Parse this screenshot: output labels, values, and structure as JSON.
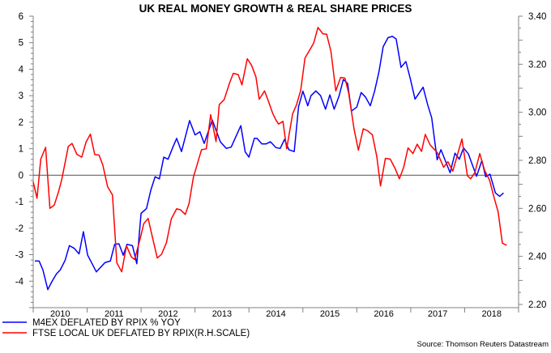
{
  "chart_data": {
    "type": "line",
    "title": "UK REAL MONEY GROWTH & REAL SHARE PRICES",
    "source": "Source: Thomson Reuters Datastream",
    "x_tick_labels": [
      "2010",
      "2011",
      "2012",
      "2013",
      "2014",
      "2015",
      "2016",
      "2017",
      "2018"
    ],
    "xlim": [
      2010,
      2019
    ],
    "y_left": {
      "ylim": [
        -5,
        6
      ],
      "tick_labels": [
        "6",
        "5",
        "4",
        "3",
        "2",
        "1",
        "0",
        "-1",
        "-2",
        "-3",
        "-4"
      ],
      "ticks": [
        6,
        5,
        4,
        3,
        2,
        1,
        0,
        -1,
        -2,
        -3,
        -4
      ]
    },
    "y_right": {
      "ylim": [
        2.2,
        3.4
      ],
      "tick_labels": [
        "3.40",
        "3.20",
        "3.00",
        "2.80",
        "2.60",
        "2.40",
        "2.20"
      ],
      "ticks": [
        3.4,
        3.2,
        3.0,
        2.8,
        2.6,
        2.4,
        2.2
      ]
    },
    "reference_line": 0,
    "grid": false,
    "legend_placement": "bottom-left",
    "series": [
      {
        "name": "M4EX DEFLATED BY RPIX % YOY",
        "axis": "left",
        "color": "#0000ff",
        "points": [
          [
            2010.03,
            -3.24
          ],
          [
            2010.11,
            -3.24
          ],
          [
            2010.18,
            -3.58
          ],
          [
            2010.27,
            -4.32
          ],
          [
            2010.34,
            -4.04
          ],
          [
            2010.43,
            -3.73
          ],
          [
            2010.5,
            -3.58
          ],
          [
            2010.59,
            -3.22
          ],
          [
            2010.67,
            -2.66
          ],
          [
            2010.76,
            -2.76
          ],
          [
            2010.85,
            -2.97
          ],
          [
            2010.93,
            -2.13
          ],
          [
            2011.01,
            -3.02
          ],
          [
            2011.17,
            -3.65
          ],
          [
            2011.33,
            -3.3
          ],
          [
            2011.43,
            -3.24
          ],
          [
            2011.51,
            -2.61
          ],
          [
            2011.59,
            -2.59
          ],
          [
            2011.67,
            -3.02
          ],
          [
            2011.74,
            -2.61
          ],
          [
            2011.84,
            -2.66
          ],
          [
            2011.92,
            -3.34
          ],
          [
            2012.0,
            -1.44
          ],
          [
            2012.1,
            -1.26
          ],
          [
            2012.18,
            -0.57
          ],
          [
            2012.26,
            -0.06
          ],
          [
            2012.34,
            -0.14
          ],
          [
            2012.42,
            0.68
          ],
          [
            2012.5,
            0.6
          ],
          [
            2012.59,
            1.06
          ],
          [
            2012.66,
            1.39
          ],
          [
            2012.75,
            0.89
          ],
          [
            2012.9,
            2.06
          ],
          [
            2013.0,
            1.52
          ],
          [
            2013.09,
            1.64
          ],
          [
            2013.17,
            1.2
          ],
          [
            2013.32,
            2.08
          ],
          [
            2013.47,
            1.26
          ],
          [
            2013.58,
            1.01
          ],
          [
            2013.67,
            1.06
          ],
          [
            2013.85,
            1.87
          ],
          [
            2013.93,
            0.88
          ],
          [
            2014.0,
            0.68
          ],
          [
            2014.1,
            1.39
          ],
          [
            2014.15,
            1.39
          ],
          [
            2014.24,
            1.18
          ],
          [
            2014.32,
            1.18
          ],
          [
            2014.4,
            1.26
          ],
          [
            2014.5,
            1.04
          ],
          [
            2014.58,
            1.01
          ],
          [
            2014.66,
            1.35
          ],
          [
            2014.74,
            0.96
          ],
          [
            2014.84,
            0.89
          ],
          [
            2014.92,
            2.59
          ],
          [
            2015.0,
            3.17
          ],
          [
            2015.09,
            2.62
          ],
          [
            2015.15,
            3.0
          ],
          [
            2015.24,
            3.18
          ],
          [
            2015.33,
            3.0
          ],
          [
            2015.42,
            2.49
          ],
          [
            2015.5,
            3.03
          ],
          [
            2015.58,
            2.49
          ],
          [
            2015.67,
            2.98
          ],
          [
            2015.75,
            3.61
          ],
          [
            2015.83,
            3.46
          ],
          [
            2015.9,
            2.42
          ],
          [
            2016.0,
            2.57
          ],
          [
            2016.08,
            3.12
          ],
          [
            2016.16,
            2.95
          ],
          [
            2016.25,
            2.62
          ],
          [
            2016.33,
            3.17
          ],
          [
            2016.41,
            3.89
          ],
          [
            2016.49,
            4.85
          ],
          [
            2016.58,
            5.19
          ],
          [
            2016.66,
            5.24
          ],
          [
            2016.73,
            5.14
          ],
          [
            2016.82,
            4.07
          ],
          [
            2016.91,
            4.29
          ],
          [
            2016.99,
            3.66
          ],
          [
            2017.08,
            2.87
          ],
          [
            2017.23,
            3.32
          ],
          [
            2017.31,
            2.69
          ],
          [
            2017.39,
            2.16
          ],
          [
            2017.49,
            0.58
          ],
          [
            2017.56,
            0.96
          ],
          [
            2017.73,
            0.09
          ],
          [
            2017.82,
            0.83
          ],
          [
            2017.9,
            0.6
          ],
          [
            2017.98,
            1.03
          ],
          [
            2018.07,
            0.8
          ],
          [
            2018.22,
            -0.04
          ],
          [
            2018.32,
            0.55
          ],
          [
            2018.39,
            -0.06
          ],
          [
            2018.47,
            0.04
          ],
          [
            2018.57,
            -0.67
          ],
          [
            2018.65,
            -0.8
          ],
          [
            2018.72,
            -0.67
          ]
        ]
      },
      {
        "name": "FTSE LOCAL UK DEFLATED BY RPIX(R.H.SCALE)",
        "axis": "right",
        "color": "#ff0000",
        "points": [
          [
            2010.0,
            2.71
          ],
          [
            2010.07,
            2.642
          ],
          [
            2010.14,
            2.805
          ],
          [
            2010.23,
            2.854
          ],
          [
            2010.31,
            2.6
          ],
          [
            2010.39,
            2.614
          ],
          [
            2010.47,
            2.67
          ],
          [
            2010.53,
            2.721
          ],
          [
            2010.65,
            2.858
          ],
          [
            2010.72,
            2.87
          ],
          [
            2010.81,
            2.825
          ],
          [
            2010.9,
            2.813
          ],
          [
            2010.98,
            2.876
          ],
          [
            2011.06,
            2.909
          ],
          [
            2011.14,
            2.824
          ],
          [
            2011.22,
            2.822
          ],
          [
            2011.29,
            2.78
          ],
          [
            2011.38,
            2.69
          ],
          [
            2011.47,
            2.656
          ],
          [
            2011.55,
            2.373
          ],
          [
            2011.64,
            2.336
          ],
          [
            2011.73,
            2.444
          ],
          [
            2011.82,
            2.398
          ],
          [
            2011.88,
            2.387
          ],
          [
            2011.98,
            2.471
          ],
          [
            2012.05,
            2.536
          ],
          [
            2012.13,
            2.558
          ],
          [
            2012.21,
            2.48
          ],
          [
            2012.3,
            2.393
          ],
          [
            2012.38,
            2.409
          ],
          [
            2012.47,
            2.457
          ],
          [
            2012.56,
            2.556
          ],
          [
            2012.66,
            2.598
          ],
          [
            2012.73,
            2.594
          ],
          [
            2012.82,
            2.575
          ],
          [
            2012.89,
            2.62
          ],
          [
            2012.97,
            2.73
          ],
          [
            2013.12,
            2.844
          ],
          [
            2013.21,
            2.848
          ],
          [
            2013.29,
            2.99
          ],
          [
            2013.39,
            2.878
          ],
          [
            2013.45,
            3.032
          ],
          [
            2013.54,
            3.052
          ],
          [
            2013.64,
            3.122
          ],
          [
            2013.71,
            3.162
          ],
          [
            2013.8,
            3.157
          ],
          [
            2013.87,
            3.114
          ],
          [
            2013.97,
            3.223
          ],
          [
            2014.05,
            3.195
          ],
          [
            2014.13,
            3.147
          ],
          [
            2014.19,
            3.054
          ],
          [
            2014.29,
            3.089
          ],
          [
            2014.37,
            3.041
          ],
          [
            2014.44,
            2.996
          ],
          [
            2014.5,
            2.968
          ],
          [
            2014.55,
            2.951
          ],
          [
            2014.63,
            2.962
          ],
          [
            2014.7,
            2.848
          ],
          [
            2014.81,
            2.993
          ],
          [
            2014.88,
            3.03
          ],
          [
            2014.96,
            3.091
          ],
          [
            2015.04,
            3.226
          ],
          [
            2015.13,
            3.26
          ],
          [
            2015.2,
            3.288
          ],
          [
            2015.28,
            3.353
          ],
          [
            2015.37,
            3.327
          ],
          [
            2015.44,
            3.325
          ],
          [
            2015.52,
            3.254
          ],
          [
            2015.61,
            3.089
          ],
          [
            2015.7,
            3.145
          ],
          [
            2015.78,
            3.142
          ],
          [
            2015.85,
            3.08
          ],
          [
            2015.95,
            2.929
          ],
          [
            2016.03,
            2.842
          ],
          [
            2016.12,
            2.931
          ],
          [
            2016.2,
            2.923
          ],
          [
            2016.29,
            2.906
          ],
          [
            2016.37,
            2.816
          ],
          [
            2016.44,
            2.693
          ],
          [
            2016.53,
            2.808
          ],
          [
            2016.62,
            2.805
          ],
          [
            2016.71,
            2.766
          ],
          [
            2016.79,
            2.723
          ],
          [
            2016.87,
            2.771
          ],
          [
            2016.95,
            2.852
          ],
          [
            2017.04,
            2.828
          ],
          [
            2017.12,
            2.867
          ],
          [
            2017.2,
            2.837
          ],
          [
            2017.27,
            2.908
          ],
          [
            2017.36,
            2.864
          ],
          [
            2017.49,
            2.833
          ],
          [
            2017.61,
            2.771
          ],
          [
            2017.69,
            2.794
          ],
          [
            2017.78,
            2.755
          ],
          [
            2017.95,
            2.889
          ],
          [
            2018.05,
            2.736
          ],
          [
            2018.11,
            2.723
          ],
          [
            2018.19,
            2.749
          ],
          [
            2018.28,
            2.828
          ],
          [
            2018.37,
            2.758
          ],
          [
            2018.46,
            2.718
          ],
          [
            2018.55,
            2.642
          ],
          [
            2018.62,
            2.586
          ],
          [
            2018.7,
            2.455
          ],
          [
            2018.78,
            2.446
          ]
        ]
      }
    ]
  }
}
